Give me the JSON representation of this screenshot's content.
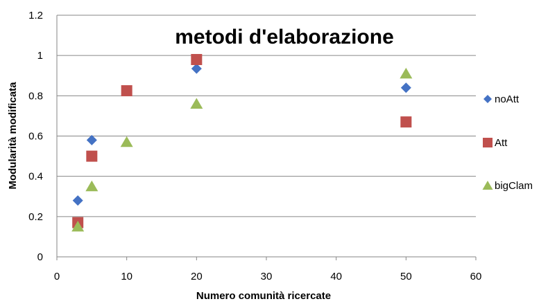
{
  "chart_data": {
    "type": "scatter",
    "title": "metodi d'elaborazione",
    "xlabel": "Numero comunità ricercate",
    "ylabel": "Modularità modificata",
    "xlim": [
      0,
      60
    ],
    "ylim": [
      0,
      1.2
    ],
    "x_ticks": [
      "0",
      "10",
      "20",
      "30",
      "40",
      "50",
      "60"
    ],
    "y_ticks": [
      "0",
      "0.2",
      "0.4",
      "0.6",
      "0.8",
      "1",
      "1.2"
    ],
    "grid": "horizontal",
    "legend_position": "right",
    "series": [
      {
        "name": "noAtt",
        "marker": "diamond",
        "color": "#4472C4",
        "points": [
          {
            "x": 3,
            "y": 0.28
          },
          {
            "x": 5,
            "y": 0.58
          },
          {
            "x": 20,
            "y": 0.935
          },
          {
            "x": 50,
            "y": 0.84
          }
        ]
      },
      {
        "name": "Att",
        "marker": "square",
        "color": "#C0504D",
        "points": [
          {
            "x": 3,
            "y": 0.17
          },
          {
            "x": 5,
            "y": 0.5
          },
          {
            "x": 10,
            "y": 0.825
          },
          {
            "x": 20,
            "y": 0.98
          },
          {
            "x": 50,
            "y": 0.67
          }
        ]
      },
      {
        "name": "bigClam",
        "marker": "triangle",
        "color": "#9BBB59",
        "points": [
          {
            "x": 3,
            "y": 0.15
          },
          {
            "x": 5,
            "y": 0.35
          },
          {
            "x": 10,
            "y": 0.57
          },
          {
            "x": 20,
            "y": 0.76
          },
          {
            "x": 50,
            "y": 0.91
          }
        ]
      }
    ]
  }
}
